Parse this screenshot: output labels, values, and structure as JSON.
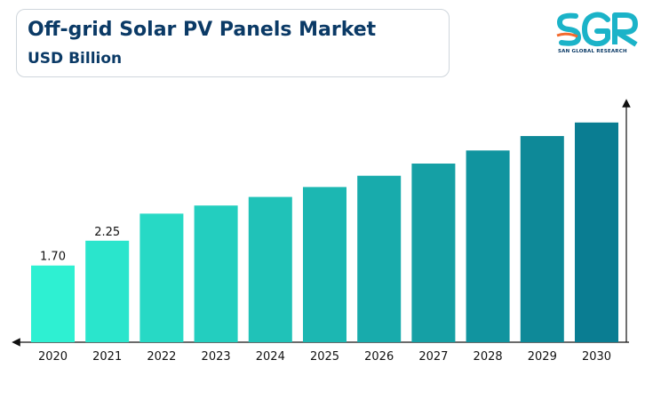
{
  "header": {
    "title": "Off-grid Solar PV Panels Market",
    "subtitle": "USD Billion"
  },
  "logo": {
    "mark": "SGR",
    "caption": "SAN GLOBAL RESEARCH",
    "colors": [
      "#f26a2e",
      "#0b3a66",
      "#1bb3c8"
    ]
  },
  "chart_data": {
    "type": "bar",
    "title": "Off-grid Solar PV Panels Market",
    "ylabel": "USD Billion",
    "xlabel": "",
    "categories": [
      "2020",
      "2021",
      "2022",
      "2023",
      "2024",
      "2025",
      "2026",
      "2027",
      "2028",
      "2029",
      "2030"
    ],
    "values": [
      1.7,
      2.25,
      2.85,
      3.03,
      3.22,
      3.44,
      3.69,
      3.96,
      4.25,
      4.57,
      4.87
    ],
    "data_labels": [
      "1.70",
      "2.25",
      "",
      "",
      "",
      "",
      "",
      "",
      "",
      "",
      ""
    ],
    "ylim": [
      0,
      5.3
    ],
    "grid": false,
    "legend": "none",
    "color_start": "#2ef0d2",
    "color_end": "#0a7d92"
  }
}
